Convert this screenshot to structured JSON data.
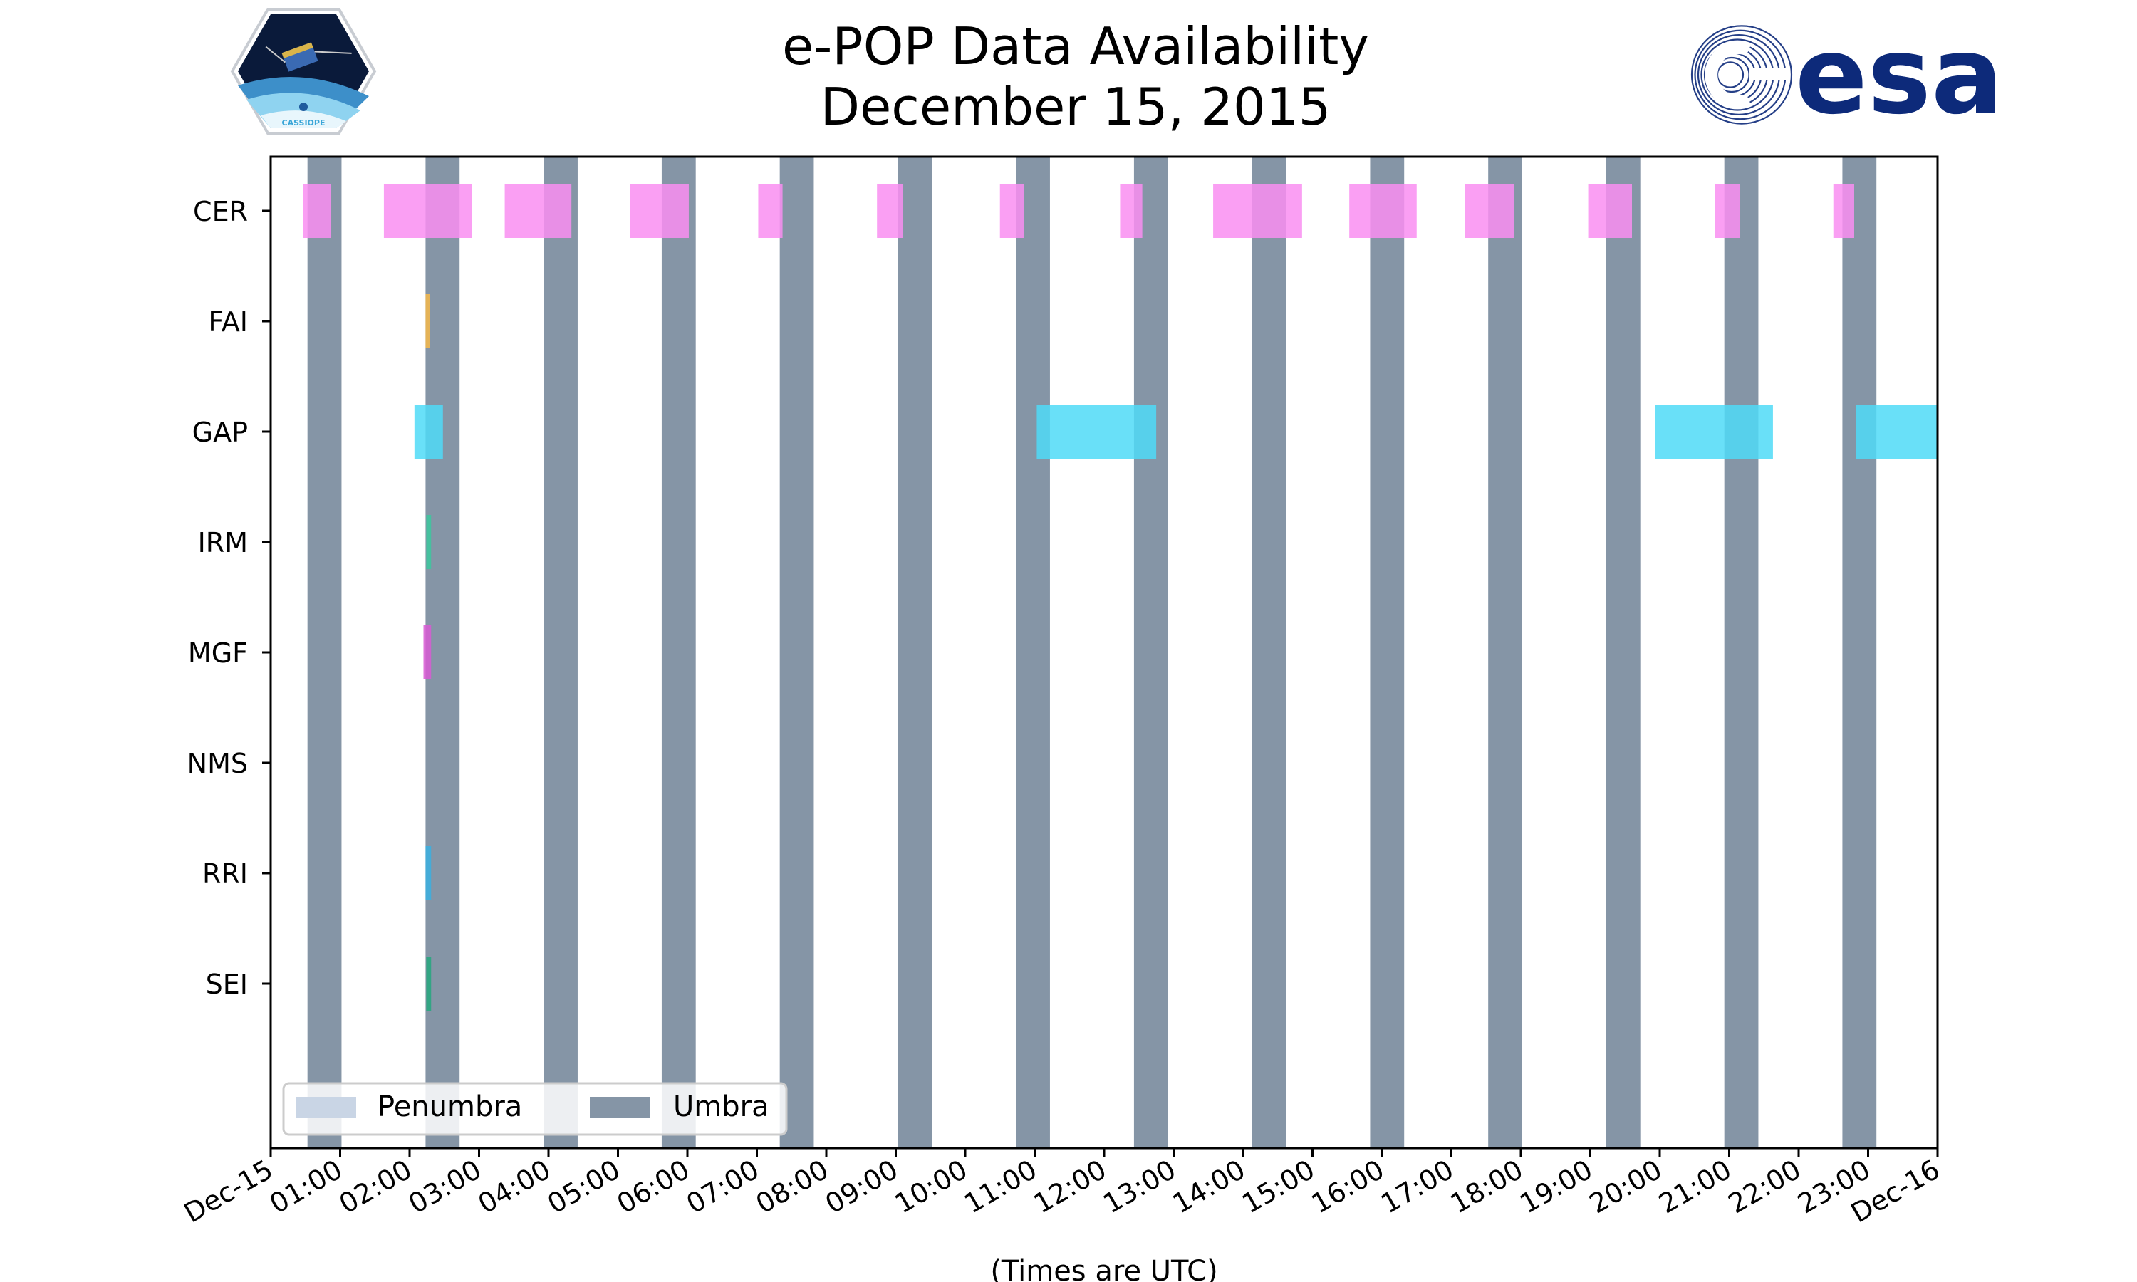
{
  "colors": {
    "umbra": "#8595a6",
    "penumbra": "#c9d5e5",
    "CER": "#f98ef1",
    "FAI": "#f6b849",
    "GAP": "#4fdaf7",
    "IRM": "#3cc89e",
    "MGF": "#d85ad4",
    "NMS": "#999999",
    "RRI": "#3ab0e0",
    "SEI": "#25a87e",
    "esa_blue": "#0d2a7a"
  },
  "logos": {
    "esa": "esa",
    "cassiope": "CASSIOPE"
  },
  "chart_data": {
    "type": "timeline",
    "title": [
      "e-POP Data Availability",
      "December 15, 2015"
    ],
    "xlabel": "(Times are UTC)",
    "ylabel": "",
    "xlim": [
      0,
      24
    ],
    "x_unit": "hours UTC",
    "x_ticks": [
      0,
      1,
      2,
      3,
      4,
      5,
      6,
      7,
      8,
      9,
      10,
      11,
      12,
      13,
      14,
      15,
      16,
      17,
      18,
      19,
      20,
      21,
      22,
      23,
      24
    ],
    "x_tick_labels": [
      "Dec-15",
      "01:00",
      "02:00",
      "03:00",
      "04:00",
      "05:00",
      "06:00",
      "07:00",
      "08:00",
      "09:00",
      "10:00",
      "11:00",
      "12:00",
      "13:00",
      "14:00",
      "15:00",
      "16:00",
      "17:00",
      "18:00",
      "19:00",
      "20:00",
      "21:00",
      "22:00",
      "23:00",
      "Dec-16"
    ],
    "categories": [
      "CER",
      "FAI",
      "GAP",
      "IRM",
      "MGF",
      "NMS",
      "RRI",
      "SEI"
    ],
    "umbra": [
      [
        0.53,
        1.02
      ],
      [
        2.23,
        2.72
      ],
      [
        3.93,
        4.42
      ],
      [
        5.63,
        6.12
      ],
      [
        7.33,
        7.82
      ],
      [
        9.03,
        9.52
      ],
      [
        10.73,
        11.22
      ],
      [
        12.43,
        12.92
      ],
      [
        14.13,
        14.62
      ],
      [
        15.83,
        16.32
      ],
      [
        17.53,
        18.02
      ],
      [
        19.23,
        19.72
      ],
      [
        20.93,
        21.42
      ],
      [
        22.63,
        23.12
      ]
    ],
    "penumbra": [],
    "series": [
      {
        "name": "CER",
        "intervals": [
          [
            0.47,
            0.87
          ],
          [
            1.63,
            2.9
          ],
          [
            3.37,
            4.33
          ],
          [
            5.17,
            6.02
          ],
          [
            7.02,
            7.37
          ],
          [
            8.73,
            9.1
          ],
          [
            10.5,
            10.85
          ],
          [
            12.23,
            12.55
          ],
          [
            13.57,
            14.85
          ],
          [
            15.53,
            16.5
          ],
          [
            17.2,
            17.9
          ],
          [
            18.97,
            19.6
          ],
          [
            20.8,
            21.15
          ],
          [
            22.5,
            22.8
          ]
        ]
      },
      {
        "name": "FAI",
        "intervals": [
          [
            2.23,
            2.29
          ]
        ]
      },
      {
        "name": "GAP",
        "intervals": [
          [
            2.07,
            2.48
          ],
          [
            11.03,
            12.75
          ],
          [
            19.93,
            21.63
          ],
          [
            22.83,
            24.0
          ]
        ]
      },
      {
        "name": "IRM",
        "intervals": [
          [
            2.24,
            2.31
          ]
        ]
      },
      {
        "name": "MGF",
        "intervals": [
          [
            2.2,
            2.31
          ]
        ]
      },
      {
        "name": "NMS",
        "intervals": []
      },
      {
        "name": "RRI",
        "intervals": [
          [
            2.23,
            2.31
          ]
        ]
      },
      {
        "name": "SEI",
        "intervals": [
          [
            2.24,
            2.31
          ]
        ]
      }
    ],
    "legend": {
      "position": "lower-left",
      "entries": [
        {
          "label": "Penumbra",
          "color_key": "penumbra"
        },
        {
          "label": "Umbra",
          "color_key": "umbra"
        }
      ]
    },
    "grid": false
  }
}
